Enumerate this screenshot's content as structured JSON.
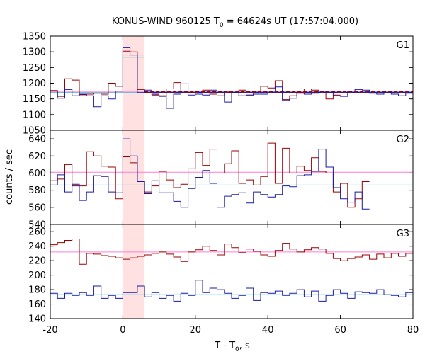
{
  "colors": {
    "red": "#990000",
    "blue": "#1a1aa6",
    "redfit": "#ff7fd0",
    "bluefit": "#4fc3e6",
    "shade": "#ffe1e1"
  },
  "chart_data": {
    "type": "line",
    "title_main": "KONUS-WIND 960125 T",
    "title_sub": "0",
    "title_rest": " = 64624s UT (17:57:04.000)",
    "xlabel_main": "T - T",
    "xlabel_sub": "0",
    "xlabel_rest": ", s",
    "ylabel": "counts / sec",
    "xlim": [
      -20,
      80
    ],
    "xticks": [
      -20,
      0,
      20,
      40,
      60,
      80
    ],
    "shaded_interval": [
      0,
      6
    ],
    "bin_width": 2,
    "bin_start": -20,
    "panels": [
      {
        "name": "G1",
        "ylim": [
          1050,
          1350
        ],
        "yticks": [
          1050,
          1100,
          1150,
          1200,
          1250,
          1300,
          1350
        ],
        "red_fit": 1172,
        "blue_fit": 1170,
        "burst_fits": {
          "red": 1290,
          "blue": 1283
        },
        "red": [
          1177,
          1158,
          1214,
          1210,
          1163,
          1165,
          1168,
          1165,
          1200,
          1190,
          1302,
          1300,
          1180,
          1170,
          1162,
          1160,
          1182,
          1202,
          1175,
          1170,
          1175,
          1178,
          1165,
          1160,
          1172,
          1170,
          1178,
          1162,
          1175,
          1190,
          1185,
          1208,
          1148,
          1160,
          1170,
          1182,
          1178,
          1175,
          1150,
          1162
        ],
        "blue": [
          1175,
          1152,
          1180,
          1160,
          1165,
          1160,
          1125,
          1160,
          1150,
          1175,
          1313,
          1290,
          1170,
          1178,
          1165,
          1158,
          1120,
          1165,
          1198,
          1162,
          1165,
          1162,
          1178,
          1175,
          1140,
          1170,
          1160,
          1162,
          1165,
          1165,
          1175,
          1188,
          1145,
          1152,
          1168,
          1165,
          1168,
          1175,
          1170,
          1160,
          1158,
          1175,
          1180,
          1178,
          1168,
          1165,
          1170,
          1165,
          1160,
          1168
        ]
      },
      {
        "name": "G2",
        "ylim": [
          540,
          650
        ],
        "yticks": [
          540,
          560,
          580,
          600,
          620,
          640
        ],
        "red_fit": 601,
        "blue_fit": 586,
        "red": [
          591,
          593,
          610,
          585,
          585,
          625,
          620,
          608,
          607,
          570,
          619,
          612,
          590,
          578,
          585,
          602,
          592,
          583,
          587,
          605,
          624,
          609,
          628,
          600,
          611,
          626,
          588,
          592,
          586,
          596,
          635,
          588,
          629,
          600,
          608,
          603,
          618,
          602,
          600,
          578,
          588,
          560,
          570,
          590
        ],
        "blue": [
          586,
          598,
          578,
          587,
          568,
          578,
          597,
          596,
          578,
          577,
          640,
          620,
          590,
          576,
          591,
          577,
          577,
          567,
          560,
          582,
          595,
          603,
          588,
          560,
          573,
          575,
          577,
          565,
          578,
          575,
          572,
          575,
          585,
          584,
          597,
          598,
          602,
          628,
          607,
          583,
          570,
          566,
          578,
          558
        ]
      },
      {
        "name": "G3",
        "ylim": [
          140,
          270
        ],
        "yticks": [
          140,
          160,
          180,
          200,
          220,
          240,
          260
        ],
        "red_fit": 232,
        "blue_fit": 173,
        "red": [
          242,
          245,
          248,
          250,
          215,
          230,
          229,
          227,
          226,
          224,
          222,
          224,
          226,
          228,
          230,
          232,
          229,
          225,
          219,
          232,
          235,
          240,
          234,
          228,
          243,
          238,
          231,
          236,
          233,
          228,
          226,
          234,
          244,
          236,
          232,
          235,
          238,
          236,
          230,
          223,
          220,
          223,
          225,
          228,
          222,
          229,
          224,
          230,
          226,
          230
        ],
        "blue": [
          175,
          168,
          175,
          172,
          176,
          172,
          185,
          168,
          172,
          168,
          176,
          176,
          185,
          170,
          176,
          168,
          172,
          164,
          175,
          172,
          193,
          176,
          182,
          180,
          175,
          168,
          172,
          182,
          165,
          176,
          175,
          178,
          172,
          175,
          180,
          170,
          178,
          164,
          172,
          180,
          175,
          168,
          177,
          176,
          175,
          180,
          173,
          172,
          170,
          176
        ]
      }
    ]
  }
}
